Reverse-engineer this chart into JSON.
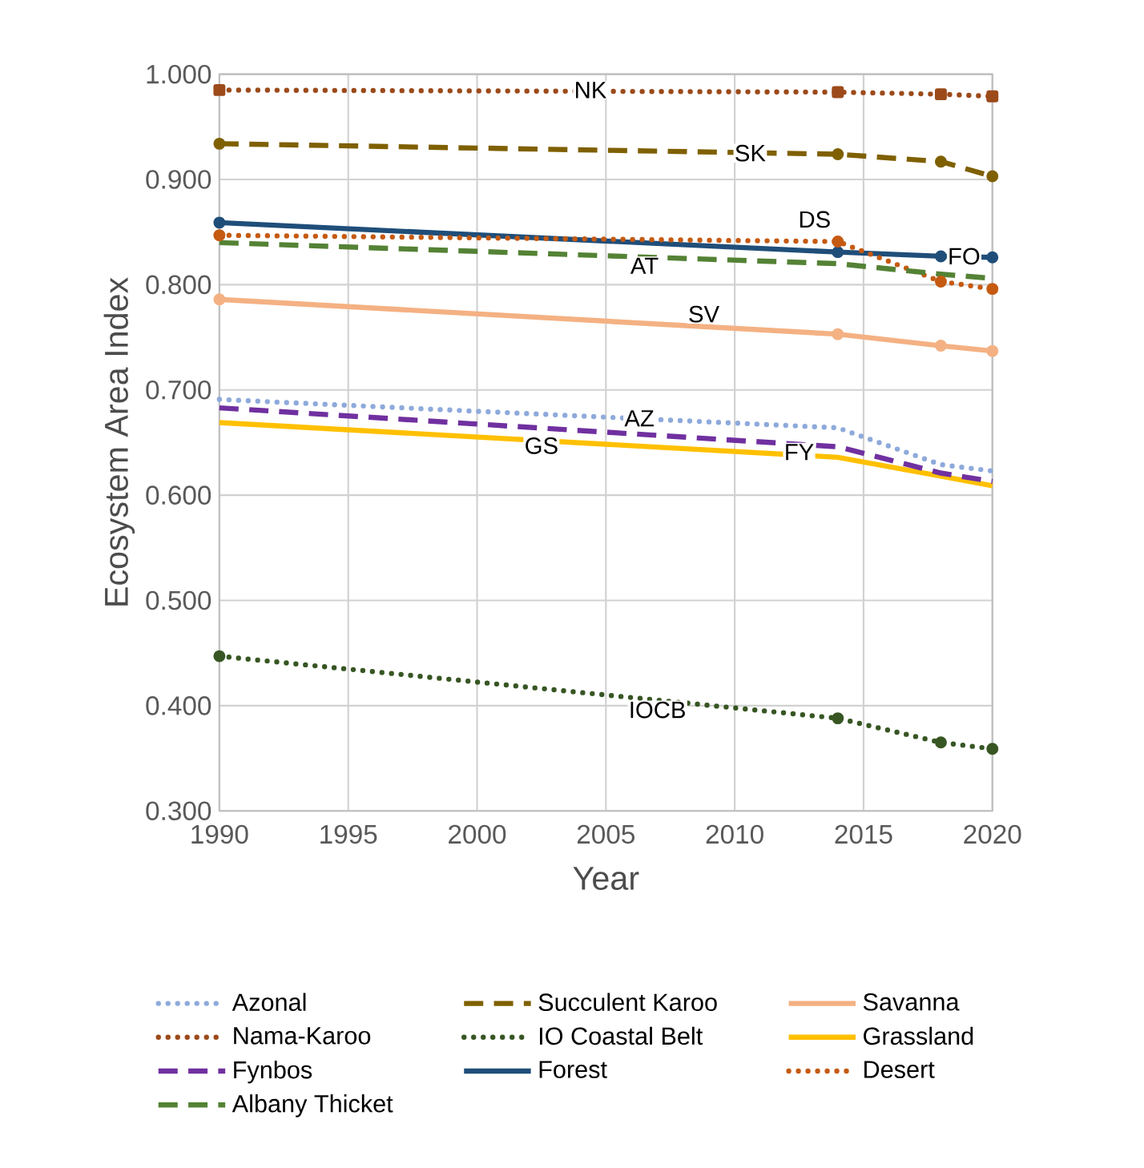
{
  "chart_data": {
    "type": "line",
    "xlabel": "Year",
    "ylabel": "Ecosystem Area Index",
    "x": [
      1990,
      2014,
      2018,
      2020
    ],
    "series": [
      {
        "name": "Azonal",
        "color": "#8eaadb",
        "line_style": "dotted",
        "marker": "none",
        "values": [
          0.691,
          0.664,
          0.629,
          0.623
        ]
      },
      {
        "name": "Succulent Karoo",
        "color": "#7f6000",
        "line_style": "dashed",
        "marker": "circle",
        "values": [
          0.934,
          0.924,
          0.917,
          0.903
        ]
      },
      {
        "name": "Savanna",
        "color": "#f4b183",
        "line_style": "solid",
        "marker": "circle",
        "values": [
          0.786,
          0.753,
          0.742,
          0.737
        ]
      },
      {
        "name": "Nama-Karoo",
        "color": "#9c4a1a",
        "line_style": "dotted",
        "marker": "square",
        "values": [
          0.985,
          0.983,
          0.981,
          0.979
        ]
      },
      {
        "name": "IO Coastal Belt",
        "color": "#375623",
        "line_style": "dotted",
        "marker": "circle",
        "values": [
          0.447,
          0.388,
          0.365,
          0.359
        ]
      },
      {
        "name": "Grassland",
        "color": "#ffc000",
        "line_style": "solid",
        "marker": "none",
        "values": [
          0.669,
          0.636,
          0.618,
          0.609
        ]
      },
      {
        "name": "Fynbos",
        "color": "#7030a0",
        "line_style": "dashed",
        "marker": "none",
        "values": [
          0.683,
          0.646,
          0.621,
          0.613
        ]
      },
      {
        "name": "Forest",
        "color": "#1f4e79",
        "line_style": "solid",
        "marker": "circle",
        "values": [
          0.859,
          0.831,
          0.827,
          0.826
        ]
      },
      {
        "name": "Desert",
        "color": "#c55a11",
        "line_style": "dotted",
        "marker": "circle",
        "values": [
          0.847,
          0.841,
          0.803,
          0.796
        ]
      },
      {
        "name": "Albany Thicket",
        "color": "#548235",
        "line_style": "dashed",
        "marker": "none",
        "values": [
          0.84,
          0.82,
          0.81,
          0.806
        ]
      }
    ],
    "xlim": [
      1990,
      2020
    ],
    "xticks": [
      1990,
      1995,
      2000,
      2005,
      2010,
      2015,
      2020
    ],
    "ylim": [
      0.3,
      1.0
    ],
    "yticks": [
      {
        "value": 0.3,
        "label": "0.300"
      },
      {
        "value": 0.4,
        "label": "0.400"
      },
      {
        "value": 0.5,
        "label": "0.500"
      },
      {
        "value": 0.6,
        "label": "0.600"
      },
      {
        "value": 0.7,
        "label": "0.700"
      },
      {
        "value": 0.8,
        "label": "0.800"
      },
      {
        "value": 0.9,
        "label": "0.900"
      },
      {
        "value": 1.0,
        "label": "1.000"
      }
    ],
    "grid": true,
    "legend": "bottom",
    "annotations": [
      {
        "text": "NK",
        "x": 2004.4,
        "y": 0.985
      },
      {
        "text": "SK",
        "x": 2010.6,
        "y": 0.925
      },
      {
        "text": "DS",
        "x": 2013.1,
        "y": 0.862
      },
      {
        "text": "FO",
        "x": 2018.9,
        "y": 0.827
      },
      {
        "text": "AT",
        "x": 2006.5,
        "y": 0.818
      },
      {
        "text": "SV",
        "x": 2008.8,
        "y": 0.772
      },
      {
        "text": "AZ",
        "x": 2006.3,
        "y": 0.673
      },
      {
        "text": "GS",
        "x": 2002.5,
        "y": 0.647
      },
      {
        "text": "FY",
        "x": 2012.5,
        "y": 0.641
      },
      {
        "text": "IOCB",
        "x": 2007.0,
        "y": 0.396
      }
    ]
  }
}
